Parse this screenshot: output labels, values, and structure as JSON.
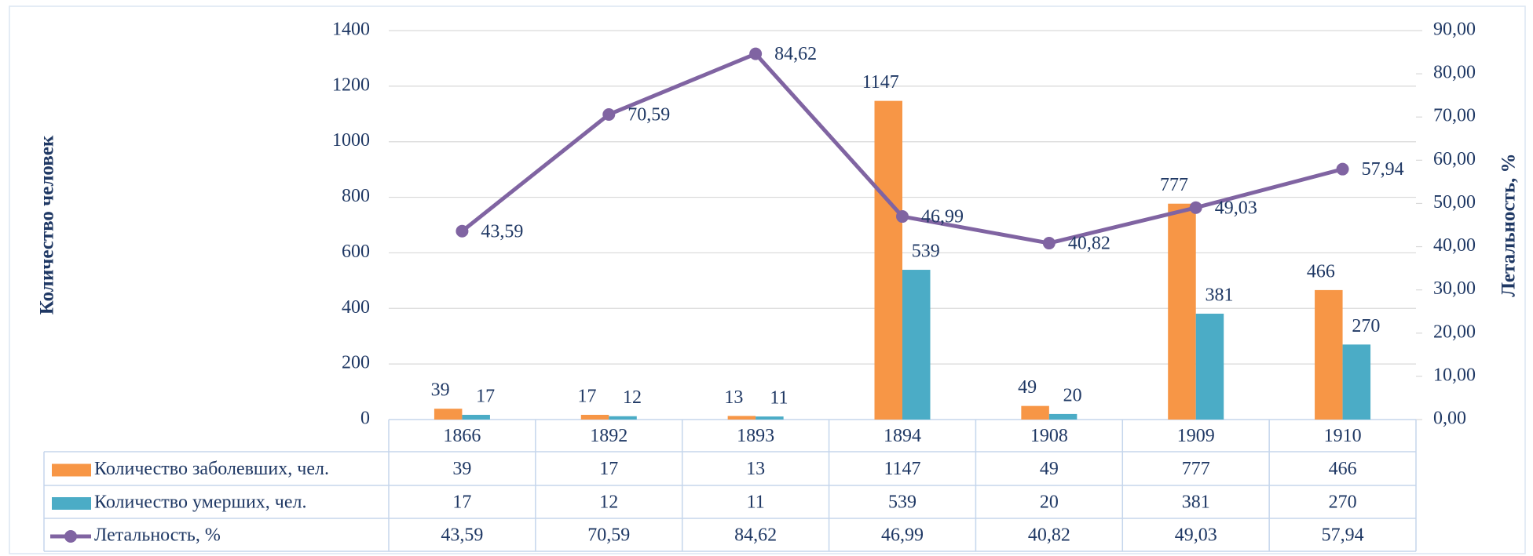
{
  "chart_data": {
    "type": "bar",
    "categories": [
      "1866",
      "1892",
      "1893",
      "1894",
      "1908",
      "1909",
      "1910"
    ],
    "series": [
      {
        "name": "Количество заболевших, чел.",
        "color": "#F79646",
        "values": [
          39,
          17,
          13,
          1147,
          49,
          777,
          466
        ]
      },
      {
        "name": "Количество умерших, чел.",
        "color": "#4BACC6",
        "values": [
          17,
          12,
          11,
          539,
          20,
          381,
          270
        ]
      },
      {
        "name": "Летальность, %",
        "type": "line",
        "axis": "y2",
        "color": "#8064A2",
        "values": [
          43.59,
          70.59,
          84.62,
          46.99,
          40.82,
          49.03,
          57.94
        ],
        "value_labels": [
          "43,59",
          "70,59",
          "84,62",
          "46,99",
          "40,82",
          "49,03",
          "57,94"
        ]
      }
    ],
    "ylabel": "Количество человек",
    "y2label": "Летальность, %",
    "ylim": [
      0,
      1400
    ],
    "yticks": [
      0,
      200,
      400,
      600,
      800,
      1000,
      1200,
      1400
    ],
    "y2lim": [
      0,
      90
    ],
    "y2ticks": [
      {
        "value": 0,
        "label": "0,00"
      },
      {
        "value": 10,
        "label": "10,00"
      },
      {
        "value": 20,
        "label": "20,00"
      },
      {
        "value": 30,
        "label": "30,00"
      },
      {
        "value": 40,
        "label": "40,00"
      },
      {
        "value": 50,
        "label": "50,00"
      },
      {
        "value": 60,
        "label": "60,00"
      },
      {
        "value": 70,
        "label": "70,00"
      },
      {
        "value": 80,
        "label": "80,00"
      },
      {
        "value": 90,
        "label": "90,00"
      }
    ],
    "grid": true
  }
}
